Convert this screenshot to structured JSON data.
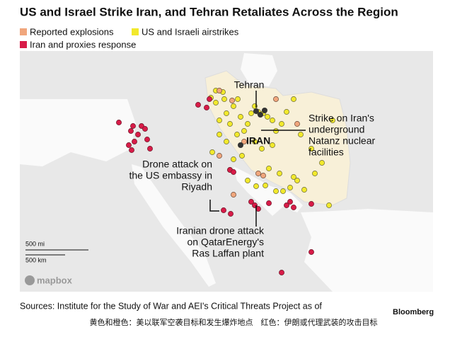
{
  "title": "US and Israel Strike Iran, and Tehran Retaliates Across the Region",
  "legend": [
    {
      "label": "Reported explosions",
      "color": "#f0a67c"
    },
    {
      "label": "US and Israeli airstrikes",
      "color": "#f2e92c"
    },
    {
      "label": "Iran and proxies response",
      "color": "#d81b48"
    }
  ],
  "map": {
    "labels": {
      "tehran": "Tehran",
      "iran": "IRAN",
      "natanz": [
        "Strike on Iran's",
        "underground",
        "Natanz nuclear",
        "facilities"
      ],
      "riyadh": [
        "Drone attack on",
        "the US embassy in",
        "Riyadh"
      ],
      "ras_laffan": [
        "Iranian drone attack",
        "on QatarEnergy's",
        "Ras Laffan plant"
      ]
    },
    "scale": [
      "500 mi",
      "500 km"
    ],
    "attribution": "mapbox"
  },
  "sources": "Sources: Institute for the Study of War and AEI's Critical Threats Project as of",
  "brand": "Bloomberg",
  "caption": "黄色和橙色：美以联军空袭目标和发生爆炸地点　红色：伊朗或代理武装的攻击目标"
}
